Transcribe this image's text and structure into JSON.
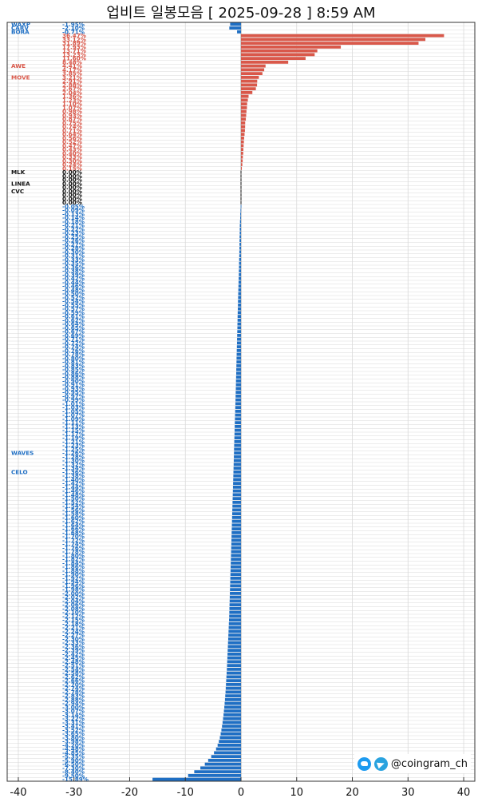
{
  "title": "업비트 일봉모음 [ 2025-09-28 ]  8:59 AM",
  "credit": "@coingram_ch",
  "colors": {
    "up": "#d9584a",
    "flat": "#111111",
    "down": "#1f6fc4",
    "grid": "#d9d9d9"
  },
  "chart_data": {
    "type": "bar",
    "orientation": "horizontal",
    "xlim": [
      -42,
      42
    ],
    "xticks": [
      -40,
      -30,
      -20,
      -10,
      0,
      10,
      20,
      30,
      40
    ],
    "grid": true,
    "legend": "none",
    "rows": [
      {
        "name": "WAXP",
        "pct": "-1.95%",
        "value": -1.95
      },
      {
        "name": "CARV",
        "pct": "-2.10%",
        "value": -2.1
      },
      {
        "name": "BORA",
        "pct": "-0.71%",
        "value": -0.71
      },
      {
        "name": "",
        "pct": "36.47%",
        "value": 36.47
      },
      {
        "name": "",
        "pct": "33.12%",
        "value": 33.12
      },
      {
        "name": "",
        "pct": "31.89%",
        "value": 31.89
      },
      {
        "name": "",
        "pct": "17.93%",
        "value": 17.93
      },
      {
        "name": "",
        "pct": "13.71%",
        "value": 13.71
      },
      {
        "name": "",
        "pct": "13.23%",
        "value": 13.23
      },
      {
        "name": "",
        "pct": "11.60%",
        "value": 11.6
      },
      {
        "name": "",
        "pct": "8.48%",
        "value": 8.48
      },
      {
        "name": "AWE",
        "pct": "4.41%",
        "value": 4.41
      },
      {
        "name": "",
        "pct": "4.17%",
        "value": 4.17
      },
      {
        "name": "",
        "pct": "3.85%",
        "value": 3.85
      },
      {
        "name": "MOVE",
        "pct": "3.21%",
        "value": 3.21
      },
      {
        "name": "",
        "pct": "2.91%",
        "value": 2.91
      },
      {
        "name": "",
        "pct": "2.88%",
        "value": 2.88
      },
      {
        "name": "",
        "pct": "2.67%",
        "value": 2.67
      },
      {
        "name": "",
        "pct": "2.04%",
        "value": 2.04
      },
      {
        "name": "",
        "pct": "1.36%",
        "value": 1.36
      },
      {
        "name": "",
        "pct": "1.23%",
        "value": 1.23
      },
      {
        "name": "",
        "pct": "1.10%",
        "value": 1.1
      },
      {
        "name": "",
        "pct": "1.07%",
        "value": 1.07
      },
      {
        "name": "",
        "pct": "0.98%",
        "value": 0.98
      },
      {
        "name": "",
        "pct": "0.93%",
        "value": 0.93
      },
      {
        "name": "",
        "pct": "0.87%",
        "value": 0.87
      },
      {
        "name": "",
        "pct": "0.75%",
        "value": 0.75
      },
      {
        "name": "",
        "pct": "0.74%",
        "value": 0.74
      },
      {
        "name": "",
        "pct": "0.71%",
        "value": 0.71
      },
      {
        "name": "",
        "pct": "0.64%",
        "value": 0.64
      },
      {
        "name": "",
        "pct": "0.56%",
        "value": 0.56
      },
      {
        "name": "",
        "pct": "0.52%",
        "value": 0.52
      },
      {
        "name": "",
        "pct": "0.47%",
        "value": 0.47
      },
      {
        "name": "",
        "pct": "0.43%",
        "value": 0.43
      },
      {
        "name": "",
        "pct": "0.40%",
        "value": 0.4
      },
      {
        "name": "",
        "pct": "0.33%",
        "value": 0.33
      },
      {
        "name": "",
        "pct": "0.30%",
        "value": 0.3
      },
      {
        "name": "",
        "pct": "0.24%",
        "value": 0.24
      },
      {
        "name": "",
        "pct": "0.15%",
        "value": 0.15
      },
      {
        "name": "MLK",
        "pct": "0.00%",
        "value": 0
      },
      {
        "name": "",
        "pct": "0.00%",
        "value": 0
      },
      {
        "name": "",
        "pct": "0.00%",
        "value": 0
      },
      {
        "name": "LINEA",
        "pct": "0.00%",
        "value": 0
      },
      {
        "name": "",
        "pct": "0.00%",
        "value": 0
      },
      {
        "name": "CVC",
        "pct": "0.00%",
        "value": 0
      },
      {
        "name": "",
        "pct": "0.00%",
        "value": 0
      },
      {
        "name": "",
        "pct": "0.00%",
        "value": 0
      },
      {
        "name": "",
        "pct": "0.00%",
        "value": 0
      },
      {
        "name": "",
        "pct": "-0.05%",
        "value": -0.05
      },
      {
        "name": "",
        "pct": "-0.09%",
        "value": -0.09
      },
      {
        "name": "",
        "pct": "-0.13%",
        "value": -0.13
      },
      {
        "name": "",
        "pct": "-0.14%",
        "value": -0.14
      },
      {
        "name": "",
        "pct": "-0.18%",
        "value": -0.18
      },
      {
        "name": "",
        "pct": "-0.21%",
        "value": -0.21
      },
      {
        "name": "",
        "pct": "-0.22%",
        "value": -0.22
      },
      {
        "name": "",
        "pct": "-0.23%",
        "value": -0.23
      },
      {
        "name": "",
        "pct": "-0.25%",
        "value": -0.25
      },
      {
        "name": "",
        "pct": "-0.26%",
        "value": -0.26
      },
      {
        "name": "",
        "pct": "-0.27%",
        "value": -0.27
      },
      {
        "name": "",
        "pct": "-0.28%",
        "value": -0.28
      },
      {
        "name": "",
        "pct": "-0.30%",
        "value": -0.3
      },
      {
        "name": "",
        "pct": "-0.31%",
        "value": -0.31
      },
      {
        "name": "",
        "pct": "-0.33%",
        "value": -0.33
      },
      {
        "name": "",
        "pct": "-0.35%",
        "value": -0.35
      },
      {
        "name": "",
        "pct": "-0.36%",
        "value": -0.36
      },
      {
        "name": "",
        "pct": "-0.38%",
        "value": -0.38
      },
      {
        "name": "",
        "pct": "-0.39%",
        "value": -0.39
      },
      {
        "name": "",
        "pct": "-0.42%",
        "value": -0.42
      },
      {
        "name": "",
        "pct": "-0.44%",
        "value": -0.44
      },
      {
        "name": "",
        "pct": "-0.46%",
        "value": -0.46
      },
      {
        "name": "",
        "pct": "-0.48%",
        "value": -0.48
      },
      {
        "name": "",
        "pct": "-0.50%",
        "value": -0.5
      },
      {
        "name": "",
        "pct": "-0.52%",
        "value": -0.52
      },
      {
        "name": "",
        "pct": "-0.54%",
        "value": -0.54
      },
      {
        "name": "",
        "pct": "-0.55%",
        "value": -0.55
      },
      {
        "name": "",
        "pct": "-0.57%",
        "value": -0.57
      },
      {
        "name": "",
        "pct": "-0.59%",
        "value": -0.59
      },
      {
        "name": "",
        "pct": "-0.61%",
        "value": -0.61
      },
      {
        "name": "",
        "pct": "-0.62%",
        "value": -0.62
      },
      {
        "name": "",
        "pct": "-0.64%",
        "value": -0.64
      },
      {
        "name": "",
        "pct": "-0.65%",
        "value": -0.65
      },
      {
        "name": "",
        "pct": "-0.67%",
        "value": -0.67
      },
      {
        "name": "",
        "pct": "-0.69%",
        "value": -0.69
      },
      {
        "name": "",
        "pct": "-0.71%",
        "value": -0.71
      },
      {
        "name": "",
        "pct": "-0.72%",
        "value": -0.72
      },
      {
        "name": "",
        "pct": "-0.74%",
        "value": -0.74
      },
      {
        "name": "",
        "pct": "-0.76%",
        "value": -0.76
      },
      {
        "name": "",
        "pct": "-0.78%",
        "value": -0.78
      },
      {
        "name": "",
        "pct": "-0.80%",
        "value": -0.8
      },
      {
        "name": "",
        "pct": "-0.81%",
        "value": -0.81
      },
      {
        "name": "",
        "pct": "-0.83%",
        "value": -0.83
      },
      {
        "name": "",
        "pct": "-0.85%",
        "value": -0.85
      },
      {
        "name": "",
        "pct": "-0.86%",
        "value": -0.86
      },
      {
        "name": "",
        "pct": "-0.88%",
        "value": -0.88
      },
      {
        "name": "",
        "pct": "-0.90%",
        "value": -0.9
      },
      {
        "name": "",
        "pct": "-0.91%",
        "value": -0.91
      },
      {
        "name": "",
        "pct": "-0.93%",
        "value": -0.93
      },
      {
        "name": "",
        "pct": "-0.95%",
        "value": -0.95
      },
      {
        "name": "",
        "pct": "-0.97%",
        "value": -0.97
      },
      {
        "name": "",
        "pct": "-0.99%",
        "value": -0.99
      },
      {
        "name": "",
        "pct": "-1.01%",
        "value": -1.01
      },
      {
        "name": "",
        "pct": "-1.03%",
        "value": -1.03
      },
      {
        "name": "",
        "pct": "-1.05%",
        "value": -1.05
      },
      {
        "name": "",
        "pct": "-1.07%",
        "value": -1.07
      },
      {
        "name": "",
        "pct": "-1.09%",
        "value": -1.09
      },
      {
        "name": "",
        "pct": "-1.11%",
        "value": -1.11
      },
      {
        "name": "",
        "pct": "-1.13%",
        "value": -1.13
      },
      {
        "name": "",
        "pct": "-1.15%",
        "value": -1.15
      },
      {
        "name": "",
        "pct": "-1.17%",
        "value": -1.17
      },
      {
        "name": "",
        "pct": "-1.19%",
        "value": -1.19
      },
      {
        "name": "",
        "pct": "-1.21%",
        "value": -1.21
      },
      {
        "name": "",
        "pct": "-1.23%",
        "value": -1.23
      },
      {
        "name": "",
        "pct": "-1.25%",
        "value": -1.25
      },
      {
        "name": "WAVES",
        "pct": "-1.26%",
        "value": -1.26
      },
      {
        "name": "",
        "pct": "-1.28%",
        "value": -1.28
      },
      {
        "name": "",
        "pct": "-1.30%",
        "value": -1.3
      },
      {
        "name": "",
        "pct": "-1.32%",
        "value": -1.32
      },
      {
        "name": "",
        "pct": "-1.34%",
        "value": -1.34
      },
      {
        "name": "CELO",
        "pct": "-1.36%",
        "value": -1.36
      },
      {
        "name": "",
        "pct": "-1.38%",
        "value": -1.38
      },
      {
        "name": "",
        "pct": "-1.40%",
        "value": -1.4
      },
      {
        "name": "",
        "pct": "-1.42%",
        "value": -1.42
      },
      {
        "name": "",
        "pct": "-1.44%",
        "value": -1.44
      },
      {
        "name": "",
        "pct": "-1.46%",
        "value": -1.46
      },
      {
        "name": "",
        "pct": "-1.48%",
        "value": -1.48
      },
      {
        "name": "",
        "pct": "-1.50%",
        "value": -1.5
      },
      {
        "name": "",
        "pct": "-1.52%",
        "value": -1.52
      },
      {
        "name": "",
        "pct": "-1.54%",
        "value": -1.54
      },
      {
        "name": "",
        "pct": "-1.56%",
        "value": -1.56
      },
      {
        "name": "",
        "pct": "-1.58%",
        "value": -1.58
      },
      {
        "name": "",
        "pct": "-1.60%",
        "value": -1.6
      },
      {
        "name": "",
        "pct": "-1.62%",
        "value": -1.62
      },
      {
        "name": "",
        "pct": "-1.64%",
        "value": -1.64
      },
      {
        "name": "",
        "pct": "-1.66%",
        "value": -1.66
      },
      {
        "name": "",
        "pct": "-1.68%",
        "value": -1.68
      },
      {
        "name": "",
        "pct": "-1.70%",
        "value": -1.7
      },
      {
        "name": "",
        "pct": "-1.72%",
        "value": -1.72
      },
      {
        "name": "",
        "pct": "-1.74%",
        "value": -1.74
      },
      {
        "name": "",
        "pct": "-1.76%",
        "value": -1.76
      },
      {
        "name": "",
        "pct": "-1.78%",
        "value": -1.78
      },
      {
        "name": "",
        "pct": "-1.80%",
        "value": -1.8
      },
      {
        "name": "",
        "pct": "-1.82%",
        "value": -1.82
      },
      {
        "name": "",
        "pct": "-1.84%",
        "value": -1.84
      },
      {
        "name": "",
        "pct": "-1.86%",
        "value": -1.86
      },
      {
        "name": "",
        "pct": "-1.88%",
        "value": -1.88
      },
      {
        "name": "",
        "pct": "-1.90%",
        "value": -1.9
      },
      {
        "name": "",
        "pct": "-1.92%",
        "value": -1.92
      },
      {
        "name": "",
        "pct": "-1.94%",
        "value": -1.94
      },
      {
        "name": "",
        "pct": "-1.96%",
        "value": -1.96
      },
      {
        "name": "",
        "pct": "-1.98%",
        "value": -1.98
      },
      {
        "name": "",
        "pct": "-2.00%",
        "value": -2.0
      },
      {
        "name": "",
        "pct": "-2.02%",
        "value": -2.02
      },
      {
        "name": "",
        "pct": "-2.04%",
        "value": -2.04
      },
      {
        "name": "",
        "pct": "-2.06%",
        "value": -2.06
      },
      {
        "name": "",
        "pct": "-2.08%",
        "value": -2.08
      },
      {
        "name": "",
        "pct": "-2.10%",
        "value": -2.1
      },
      {
        "name": "",
        "pct": "-2.12%",
        "value": -2.12
      },
      {
        "name": "",
        "pct": "-2.15%",
        "value": -2.15
      },
      {
        "name": "",
        "pct": "-2.18%",
        "value": -2.18
      },
      {
        "name": "",
        "pct": "-2.21%",
        "value": -2.21
      },
      {
        "name": "",
        "pct": "-2.24%",
        "value": -2.24
      },
      {
        "name": "",
        "pct": "-2.27%",
        "value": -2.27
      },
      {
        "name": "",
        "pct": "-2.30%",
        "value": -2.3
      },
      {
        "name": "",
        "pct": "-2.33%",
        "value": -2.33
      },
      {
        "name": "",
        "pct": "-2.36%",
        "value": -2.36
      },
      {
        "name": "",
        "pct": "-2.39%",
        "value": -2.39
      },
      {
        "name": "",
        "pct": "-2.42%",
        "value": -2.42
      },
      {
        "name": "",
        "pct": "-2.45%",
        "value": -2.45
      },
      {
        "name": "",
        "pct": "-2.48%",
        "value": -2.48
      },
      {
        "name": "",
        "pct": "-2.51%",
        "value": -2.51
      },
      {
        "name": "",
        "pct": "-2.54%",
        "value": -2.54
      },
      {
        "name": "",
        "pct": "-2.58%",
        "value": -2.58
      },
      {
        "name": "",
        "pct": "-2.62%",
        "value": -2.62
      },
      {
        "name": "",
        "pct": "-2.66%",
        "value": -2.66
      },
      {
        "name": "",
        "pct": "-2.70%",
        "value": -2.7
      },
      {
        "name": "",
        "pct": "-2.74%",
        "value": -2.74
      },
      {
        "name": "",
        "pct": "-2.78%",
        "value": -2.78
      },
      {
        "name": "",
        "pct": "-2.83%",
        "value": -2.83
      },
      {
        "name": "",
        "pct": "-2.88%",
        "value": -2.88
      },
      {
        "name": "",
        "pct": "-2.94%",
        "value": -2.94
      },
      {
        "name": "",
        "pct": "-3.00%",
        "value": -3.0
      },
      {
        "name": "",
        "pct": "-3.07%",
        "value": -3.07
      },
      {
        "name": "",
        "pct": "-3.14%",
        "value": -3.14
      },
      {
        "name": "",
        "pct": "-3.22%",
        "value": -3.22
      },
      {
        "name": "",
        "pct": "-3.31%",
        "value": -3.31
      },
      {
        "name": "",
        "pct": "-3.41%",
        "value": -3.41
      },
      {
        "name": "",
        "pct": "-3.52%",
        "value": -3.52
      },
      {
        "name": "",
        "pct": "-3.65%",
        "value": -3.65
      },
      {
        "name": "",
        "pct": "-3.80%",
        "value": -3.8
      },
      {
        "name": "",
        "pct": "-3.98%",
        "value": -3.98
      },
      {
        "name": "",
        "pct": "-4.20%",
        "value": -4.2
      },
      {
        "name": "",
        "pct": "-4.48%",
        "value": -4.48
      },
      {
        "name": "",
        "pct": "-4.85%",
        "value": -4.85
      },
      {
        "name": "",
        "pct": "-5.35%",
        "value": -5.35
      },
      {
        "name": "",
        "pct": "-5.90%",
        "value": -5.9
      },
      {
        "name": "",
        "pct": "-6.50%",
        "value": -6.5
      },
      {
        "name": "",
        "pct": "-7.30%",
        "value": -7.3
      },
      {
        "name": "",
        "pct": "-8.40%",
        "value": -8.4
      },
      {
        "name": "",
        "pct": "-9.50%",
        "value": -9.5
      },
      {
        "name": "",
        "pct": "-15.89%",
        "value": -15.89
      }
    ]
  }
}
